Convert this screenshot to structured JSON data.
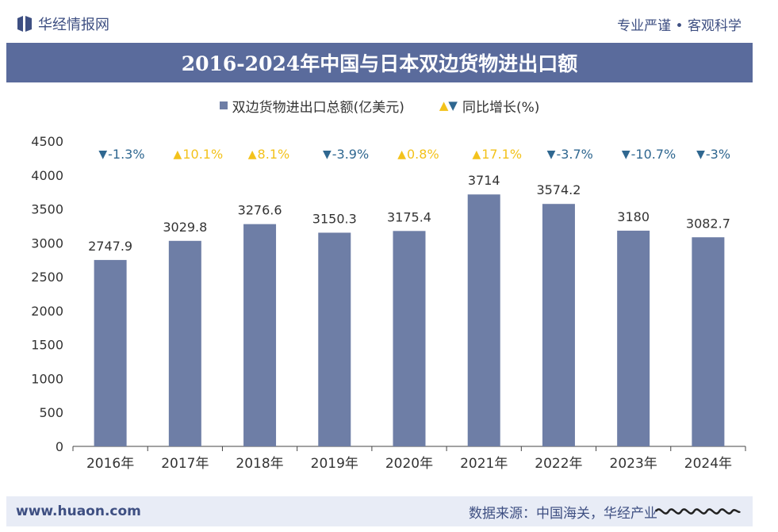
{
  "header": {
    "brand": "华经情报网",
    "slogan": "专业严谨 • 客观科学"
  },
  "footer": {
    "url": "www.huaon.com",
    "source": "数据来源：中国海关，华经产业"
  },
  "colors": {
    "bar": "#6e7ea6",
    "title_bg": "#5a6b9c",
    "up": "#f3c21b",
    "down": "#2f6790",
    "text": "#333333"
  },
  "chart_data": {
    "type": "bar",
    "title": "2016-2024年中国与日本双边货物进出口额",
    "legend": {
      "bar_label": "双边货物进出口总额(亿美元)",
      "growth_label": "同比增长(%)"
    },
    "categories": [
      "2016年",
      "2017年",
      "2018年",
      "2019年",
      "2020年",
      "2021年",
      "2022年",
      "2023年",
      "2024年"
    ],
    "series": [
      {
        "name": "双边货物进出口总额(亿美元)",
        "values": [
          2747.9,
          3029.8,
          3276.6,
          3150.3,
          3175.4,
          3714,
          3574.2,
          3180,
          3082.7
        ],
        "labels": [
          "2747.9",
          "3029.8",
          "3276.6",
          "3150.3",
          "3175.4",
          "3714",
          "3574.2",
          "3180",
          "3082.7"
        ]
      }
    ],
    "growth": {
      "values": [
        -1.3,
        10.1,
        8.1,
        -3.9,
        0.8,
        17.1,
        -3.7,
        -10.7,
        -3
      ],
      "labels": [
        "-1.3%",
        "10.1%",
        "8.1%",
        "-3.9%",
        "0.8%",
        "17.1%",
        "-3.7%",
        "-10.7%",
        "-3%"
      ]
    },
    "ylim": [
      0,
      4500
    ],
    "yticks": [
      0,
      500,
      1000,
      1500,
      2000,
      2500,
      3000,
      3500,
      4000,
      4500
    ],
    "ytick_labels": [
      "0",
      "500",
      "1000",
      "1500",
      "2000",
      "2500",
      "3000",
      "3500",
      "4000",
      "4500"
    ],
    "xlabel": "",
    "ylabel": ""
  }
}
